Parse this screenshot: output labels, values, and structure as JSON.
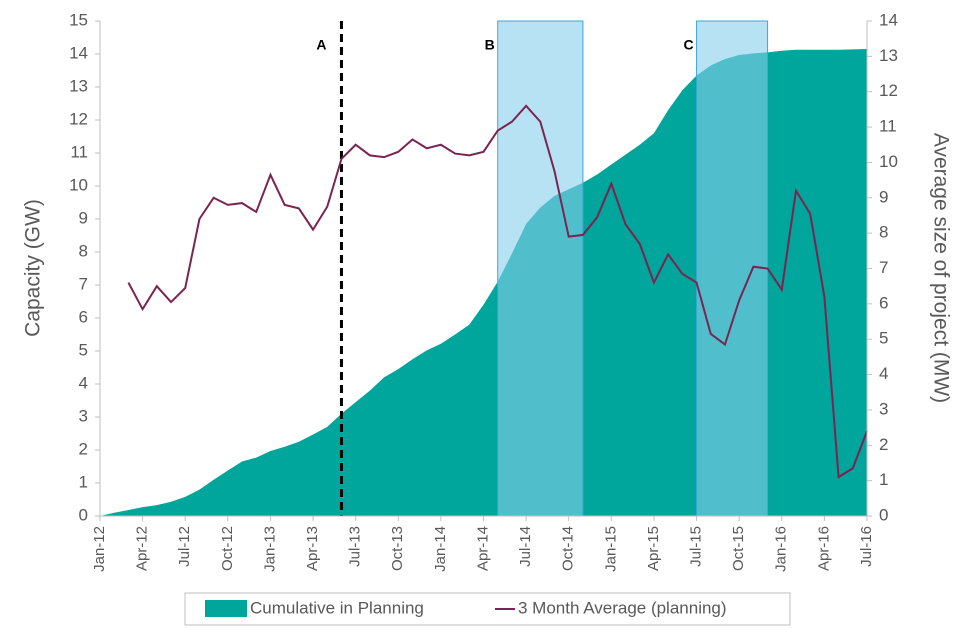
{
  "chart_data": {
    "type": "area_line",
    "categories": [
      "Jan-12",
      null,
      null,
      "Apr-12",
      null,
      null,
      "Jul-12",
      null,
      null,
      "Oct-12",
      null,
      null,
      "Jan-13",
      null,
      null,
      "Apr-13",
      null,
      null,
      "Jul-13",
      null,
      null,
      "Oct-13",
      null,
      null,
      "Jan-14",
      null,
      null,
      "Apr-14",
      null,
      null,
      "Jul-14",
      null,
      null,
      "Oct-14",
      null,
      null,
      "Jan-15",
      null,
      null,
      "Apr-15",
      null,
      null,
      "Jul-15",
      null,
      null,
      "Oct-15",
      null,
      null,
      "Jan-16",
      null,
      null,
      "Apr-16",
      null,
      null,
      "Jul-16"
    ],
    "series": [
      {
        "name": "Cumulative in Planning",
        "kind": "area",
        "color": "#00a59b",
        "values": [
          0,
          0.1,
          0.18,
          0.27,
          0.33,
          0.43,
          0.58,
          0.8,
          1.1,
          1.38,
          1.65,
          1.77,
          1.97,
          2.1,
          2.25,
          2.47,
          2.7,
          3.1,
          3.45,
          3.8,
          4.2,
          4.45,
          4.75,
          5.02,
          5.22,
          5.5,
          5.8,
          6.4,
          7.1,
          7.95,
          8.85,
          9.35,
          9.7,
          9.9,
          10.1,
          10.35,
          10.65,
          10.95,
          11.25,
          11.6,
          12.3,
          12.9,
          13.35,
          13.65,
          13.85,
          13.97,
          14.02,
          14.05,
          14.1,
          14.13,
          14.13,
          14.13,
          14.13,
          14.14,
          14.15
        ]
      },
      {
        "name": "3 Month Average (planning)",
        "kind": "line",
        "axis": "y2",
        "color": "#7b2452",
        "values": [
          null,
          null,
          6.6,
          5.85,
          6.5,
          6.05,
          6.45,
          8.4,
          9.0,
          8.8,
          8.85,
          8.6,
          9.65,
          8.8,
          8.7,
          8.1,
          8.75,
          10.1,
          10.5,
          10.2,
          10.15,
          10.3,
          10.65,
          10.4,
          10.5,
          10.25,
          10.2,
          10.3,
          10.9,
          11.15,
          11.6,
          11.15,
          9.75,
          7.9,
          7.95,
          8.45,
          9.4,
          8.25,
          7.7,
          6.6,
          7.4,
          6.85,
          6.6,
          5.15,
          4.85,
          6.1,
          7.05,
          7.0,
          6.4,
          9.2,
          8.55,
          6.2,
          1.1,
          1.35,
          2.4
        ]
      }
    ],
    "ylabel": "Capacity (GW)",
    "y2label": "Average size of project (MW)",
    "ylim": [
      0,
      15
    ],
    "yticks": [
      0,
      1,
      2,
      3,
      4,
      5,
      6,
      7,
      8,
      9,
      10,
      11,
      12,
      13,
      14,
      15
    ],
    "y2lim": [
      0,
      14
    ],
    "y2ticks": [
      0,
      1,
      2,
      3,
      4,
      5,
      6,
      7,
      8,
      9,
      10,
      11,
      12,
      13,
      14
    ],
    "markers": [
      {
        "label": "A",
        "x": 17
      }
    ],
    "regions": [
      {
        "label": "B",
        "start": 28,
        "end": 34
      },
      {
        "label": "C",
        "start": 42,
        "end": 47
      }
    ],
    "legend": "bottom"
  }
}
